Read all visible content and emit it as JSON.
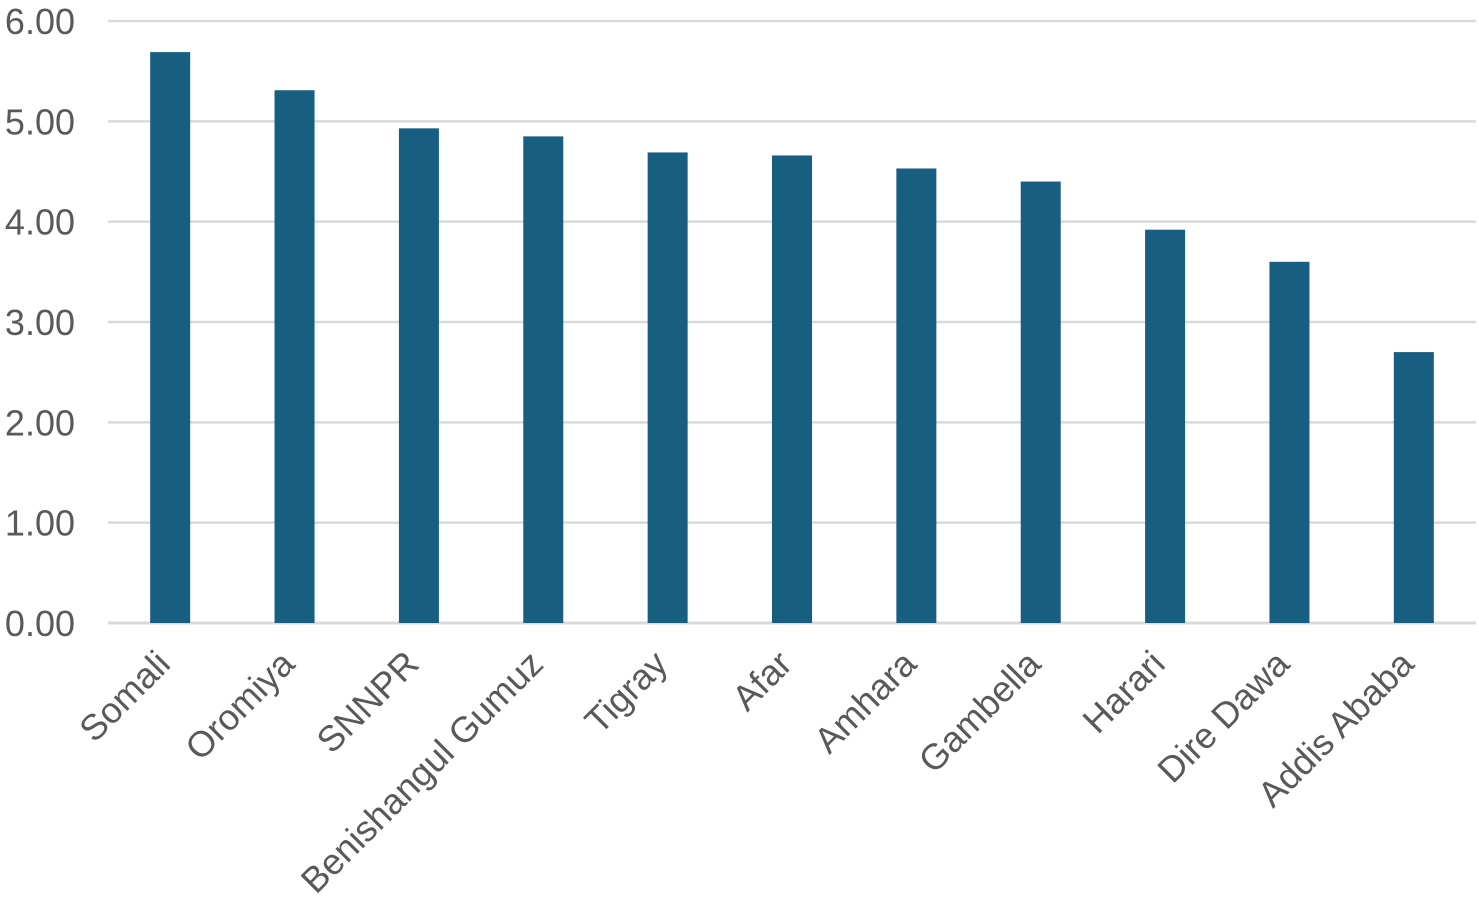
{
  "chart_data": {
    "type": "bar",
    "title": "",
    "xlabel": "",
    "ylabel": "",
    "categories": [
      "Somali",
      "Oromiya",
      "SNNPR",
      "Benishangul Gumuz",
      "Tigray",
      "Afar",
      "Amhara",
      "Gambella",
      "Harari",
      "Dire Dawa",
      "Addis Ababa"
    ],
    "values": [
      5.69,
      5.31,
      4.93,
      4.85,
      4.69,
      4.66,
      4.53,
      4.4,
      3.92,
      3.6,
      2.7
    ],
    "ylim": [
      0,
      6
    ],
    "yticks": [
      "0.00",
      "1.00",
      "2.00",
      "3.00",
      "4.00",
      "5.00",
      "6.00"
    ],
    "grid": true,
    "legend": "none",
    "colors": {
      "bar": "#175e80",
      "grid": "#d9d9d9",
      "text": "#595959"
    }
  }
}
